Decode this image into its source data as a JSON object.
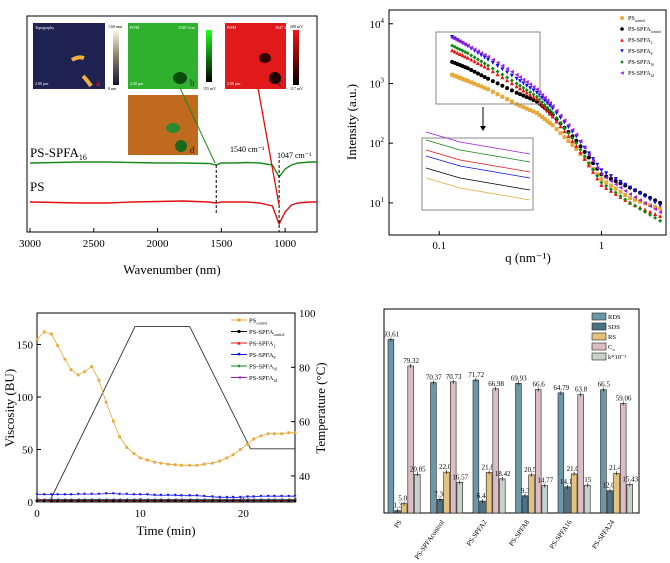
{
  "chart_data": [
    {
      "type": "line",
      "panel": "ftir",
      "xlabel": "Wavenumber (nm)",
      "xlim": [
        3000,
        750
      ],
      "xticks": [
        3000,
        2500,
        2000,
        1500,
        1000
      ],
      "yaxis_shown": false,
      "series": [
        {
          "name": "PS-SPFA",
          "sub": "16",
          "color": "#1a8a1a",
          "x": [
            3000,
            2800,
            2600,
            2400,
            2200,
            2000,
            1800,
            1600,
            1540,
            1500,
            1400,
            1300,
            1200,
            1100,
            1047,
            1000,
            950,
            900,
            800,
            750
          ],
          "y": [
            0,
            0.5,
            1,
            1,
            0.5,
            0,
            0,
            -0.5,
            -2,
            0,
            0,
            0.5,
            0,
            -2,
            -14,
            -6,
            -2,
            0,
            1,
            1
          ]
        },
        {
          "name": "PS",
          "sub": "",
          "color": "#e01010",
          "x": [
            3000,
            2800,
            2600,
            2400,
            2200,
            2000,
            1800,
            1600,
            1540,
            1500,
            1400,
            1300,
            1200,
            1100,
            1047,
            1000,
            950,
            900,
            800,
            750
          ],
          "y": [
            0,
            -0.5,
            -1,
            -1,
            0,
            0.5,
            1,
            0,
            -1,
            0,
            0,
            0,
            -1,
            -4,
            -22,
            -10,
            -3,
            -1,
            0,
            0
          ]
        }
      ],
      "annotations": [
        "1540 cm⁻¹",
        "1047 cm⁻¹"
      ],
      "insets": [
        {
          "label": "Topography",
          "scale": "2.00 µm",
          "letter": "a",
          "cbar_top": "1.68 mm",
          "cbar_bottom": "0 nm"
        },
        {
          "label": "PiFM",
          "scale": "2.00 µm",
          "letter": "b",
          "tag": "1540 1/cm",
          "cbar_bottom": "155 mV"
        },
        {
          "label": "PiFM",
          "scale": "2.00 µm",
          "letter": "c",
          "tag": "1047 1/cm",
          "cbar_top": "288 mV",
          "cbar_bottom": "117 mV"
        },
        {
          "letter": "d"
        }
      ]
    },
    {
      "type": "scatter",
      "panel": "saxs",
      "xlabel": "q (nm⁻¹)",
      "ylabel": "Intensity (a.u.)",
      "xscale": "log",
      "yscale": "log",
      "xlim": [
        0.049,
        2.5
      ],
      "ylim": [
        2.9,
        17000
      ],
      "xticks": [
        "0.1",
        "1"
      ],
      "yticks": [
        10,
        100,
        1000,
        10000
      ],
      "legend_position": "top-right",
      "x": [
        0.12,
        0.15,
        0.2,
        0.3,
        0.4,
        0.5,
        0.7,
        1.0,
        1.5,
        2.3
      ],
      "series": [
        {
          "name": "PS",
          "sub": "control",
          "color": "#e8a93a",
          "marker": "square",
          "values": [
            1400,
            1100,
            800,
            450,
            320,
            200,
            80,
            25,
            12,
            8
          ]
        },
        {
          "name": "PS-SPFA",
          "sub": "control",
          "color": "#000000",
          "marker": "circle",
          "values": [
            2300,
            1800,
            1200,
            700,
            500,
            300,
            110,
            30,
            18,
            10
          ]
        },
        {
          "name": "PS-SPFA",
          "sub": "2",
          "color": "#f01010",
          "marker": "triangle-up",
          "values": [
            3600,
            2700,
            1800,
            900,
            550,
            280,
            90,
            20,
            10,
            6
          ]
        },
        {
          "name": "PS-SPFA",
          "sub": "8",
          "color": "#1010f0",
          "marker": "triangle-down",
          "values": [
            6000,
            4200,
            2500,
            1200,
            700,
            380,
            130,
            35,
            18,
            9
          ]
        },
        {
          "name": "PS-SPFA",
          "sub": "16",
          "color": "#108a10",
          "marker": "diamond",
          "values": [
            4300,
            3200,
            2000,
            1000,
            600,
            320,
            100,
            22,
            10,
            5
          ]
        },
        {
          "name": "PS-SPFA",
          "sub": "24",
          "color": "#9a20e0",
          "marker": "triangle-left",
          "values": [
            5800,
            4300,
            2800,
            1400,
            800,
            420,
            140,
            30,
            14,
            7
          ]
        }
      ]
    },
    {
      "type": "line",
      "panel": "viscosity",
      "xlabel": "Time (min)",
      "ylabel": "Viscosity (BU)",
      "y2label": "Temperature (°C)",
      "xlim": [
        0,
        25
      ],
      "ylim": [
        0,
        180
      ],
      "y2lim": [
        30.4,
        100
      ],
      "xticks": [
        0,
        10,
        20
      ],
      "yticks": [
        0,
        50,
        100,
        150
      ],
      "y2ticks": [
        40,
        60,
        80,
        100
      ],
      "legend_position": "top-right",
      "temperature": {
        "t": [
          0,
          1.2,
          9.5,
          14.8,
          20.7,
          25
        ],
        "T": [
          30.4,
          30.4,
          95,
          95,
          50,
          50
        ]
      },
      "t": [
        0,
        0.7,
        1.4,
        2,
        2.7,
        3.3,
        4,
        4.6,
        5.3,
        6,
        6.7,
        7.4,
        8,
        8.7,
        9.4,
        10,
        10.7,
        11.4,
        12,
        12.7,
        13.4,
        14,
        14.8,
        15.5,
        16.2,
        17,
        17.7,
        18.4,
        19,
        19.7,
        20.4,
        21,
        21.7,
        22.4,
        23,
        23.7,
        24.4,
        25
      ],
      "series": [
        {
          "name": "PS",
          "sub": "control",
          "color": "#e8a93a",
          "marker": "square",
          "values": [
            155,
            162,
            160,
            149,
            136,
            126,
            121,
            124,
            129,
            116,
            95,
            77,
            62,
            52,
            46,
            42,
            40,
            38,
            37,
            36,
            35.5,
            35,
            35,
            35,
            36,
            37,
            39,
            42,
            45,
            50,
            55,
            60,
            63,
            65,
            65,
            65,
            66,
            66
          ]
        },
        {
          "name": "PS-SPFA",
          "sub": "control",
          "color": "#000000",
          "marker": "circle",
          "values": [
            1,
            1,
            1,
            1,
            1,
            1,
            1,
            1,
            1,
            1,
            1,
            1,
            1,
            1,
            1,
            1,
            1,
            1,
            1,
            1,
            1,
            1,
            1,
            1,
            1,
            1,
            1,
            1,
            1,
            1,
            1,
            1,
            1,
            1,
            1,
            1,
            1,
            1
          ]
        },
        {
          "name": "PS-SPFA",
          "sub": "2",
          "color": "#f01010",
          "marker": "triangle-up",
          "values": [
            1.5,
            1.5,
            1.5,
            1.5,
            1.5,
            1.5,
            1.5,
            1.5,
            1.5,
            1.5,
            1.5,
            1.5,
            1.5,
            1.5,
            1.5,
            1.5,
            1.5,
            1.5,
            1.5,
            1.5,
            1.5,
            1.5,
            1.5,
            1.5,
            1.5,
            1.5,
            1.5,
            1.5,
            1.5,
            1.5,
            1.5,
            1.5,
            1.5,
            1.5,
            1.5,
            1.5,
            1.5,
            1.5
          ]
        },
        {
          "name": "PS-SPFA",
          "sub": "8",
          "color": "#1010f0",
          "marker": "triangle-down",
          "values": [
            7,
            7,
            7,
            7,
            7,
            7,
            7.5,
            7.5,
            7.5,
            7.5,
            8,
            8,
            7.5,
            7.5,
            7,
            7,
            7,
            6.5,
            6.5,
            6.5,
            6.5,
            6,
            6,
            6,
            5.5,
            5,
            4.5,
            4.5,
            4.5,
            4.5,
            5,
            5,
            5.5,
            5.5,
            5.5,
            5.5,
            5.5,
            5.5
          ]
        },
        {
          "name": "PS-SPFA",
          "sub": "16",
          "color": "#108a10",
          "marker": "diamond",
          "values": [
            2,
            2,
            2,
            2,
            2,
            2,
            2,
            2,
            2,
            2,
            2,
            2,
            2,
            2,
            2,
            2,
            2,
            2,
            2,
            2,
            2,
            2,
            2,
            2,
            2,
            2,
            2,
            2,
            2,
            2,
            2,
            2,
            2,
            2,
            2,
            2,
            2,
            2
          ]
        },
        {
          "name": "PS-SPFA",
          "sub": "24",
          "color": "#9a20e0",
          "marker": "triangle-left",
          "values": [
            2.5,
            2.5,
            2.5,
            2.5,
            2.5,
            2.5,
            2.5,
            2.5,
            2.5,
            2.5,
            2.5,
            2.5,
            2.5,
            2.5,
            2.5,
            2.5,
            2.5,
            2.5,
            2.5,
            2.5,
            2.5,
            2.5,
            2.5,
            2.5,
            2.5,
            2.5,
            2.5,
            2.5,
            2.5,
            2.5,
            2.5,
            2.5,
            2.5,
            2.5,
            2.5,
            2.5,
            2.5,
            2.5
          ]
        }
      ]
    },
    {
      "type": "bar",
      "panel": "digestibility",
      "ylim": [
        0,
        110
      ],
      "yaxis_shown": false,
      "legend_position": "top-right",
      "categories": [
        "PS",
        "PS-SPFAcontrol",
        "PS-SPFA2",
        "PS-SPFA8",
        "PS-SPFA16",
        "PS-SPFA24"
      ],
      "series": [
        {
          "name": "RDS",
          "sub": "",
          "color": "#6b98a8",
          "values": [
            93.61,
            70.37,
            71.72,
            69.93,
            64.79,
            66.5
          ],
          "labels": [
            "93.61",
            "70.37",
            "71.72",
            "69.93",
            "64.79",
            "66.5"
          ]
        },
        {
          "name": "SDS",
          "sub": "",
          "color": "#4c7283",
          "values": [
            1.3,
            7.36,
            6.44,
            9.3,
            14.12,
            12.03
          ],
          "labels": [
            "1.3",
            "7.36",
            "6.44",
            "9.3",
            "14.12",
            "12.03"
          ]
        },
        {
          "name": "RS",
          "sub": "",
          "color": "#e3c27e",
          "values": [
            5.07,
            22.05,
            21.83,
            20.56,
            21.08,
            21.45
          ],
          "labels": [
            "5.07",
            "22.05",
            "21.83",
            "20.56",
            "21.08",
            "21.45"
          ]
        },
        {
          "name": "C",
          "sub": "∞",
          "color": "#dcbcc5",
          "values": [
            79.32,
            70.73,
            66.98,
            66.6,
            63.8,
            59.06
          ],
          "labels": [
            "79.32",
            "70.73",
            "66.98",
            "66.6",
            "63.8",
            "59.06"
          ]
        },
        {
          "name": "k*10⁻³",
          "sub": "",
          "color": "#c7d2cd",
          "values": [
            20.85,
            16.57,
            18.42,
            14.77,
            15,
            15.43
          ],
          "labels": [
            "20.85",
            "16.57",
            "18.42",
            "14.77",
            "15",
            "15.43"
          ]
        }
      ]
    }
  ]
}
